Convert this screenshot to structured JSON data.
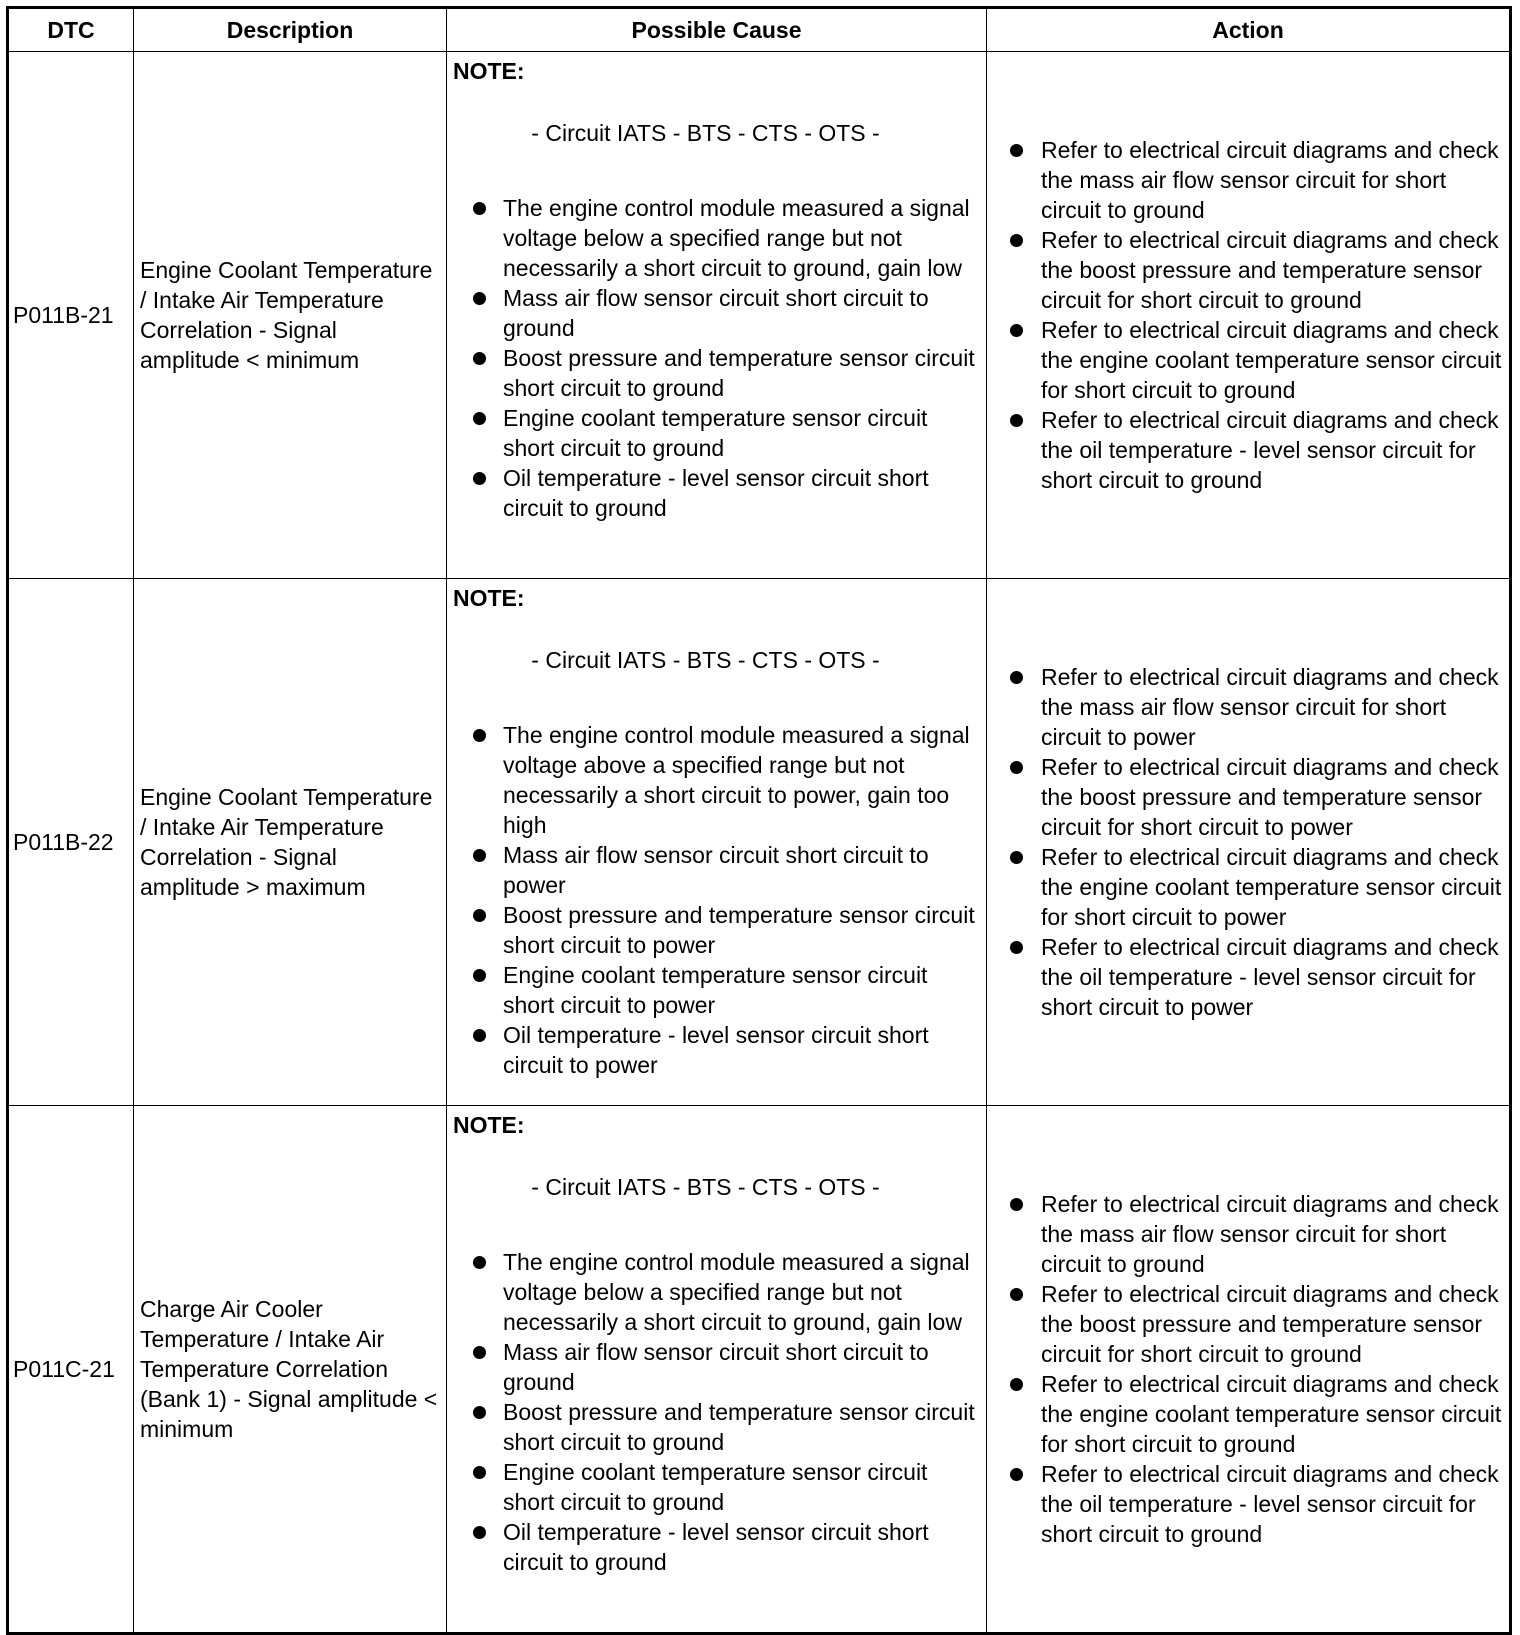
{
  "headers": {
    "dtc": "DTC",
    "description": "Description",
    "cause": "Possible Cause",
    "action": "Action"
  },
  "rows": [
    {
      "dtc": "P011B-21",
      "description": "Engine Coolant Temperature / Intake Air Temperature Correlation - Signal amplitude < minimum",
      "note": "NOTE:",
      "circuit": "- Circuit IATS - BTS - CTS - OTS -",
      "causes": [
        "The engine control module measured a signal voltage below a specified range but not necessarily a short circuit to ground, gain low",
        "Mass air flow sensor circuit short circuit to ground",
        "Boost pressure and temperature sensor circuit short circuit to ground",
        "Engine coolant temperature sensor circuit short circuit to ground",
        "Oil temperature - level sensor circuit short circuit to ground"
      ],
      "actions": [
        "Refer to electrical circuit diagrams and check the mass air flow sensor circuit for short circuit to ground",
        "Refer to electrical circuit diagrams and check the boost pressure and temperature sensor circuit for short circuit to ground",
        "Refer to electrical circuit diagrams and check the engine coolant temperature sensor circuit for short circuit to ground",
        "Refer to electrical circuit diagrams and check the oil temperature - level sensor circuit for short circuit to ground"
      ]
    },
    {
      "dtc": "P011B-22",
      "description": "Engine Coolant Temperature / Intake Air Temperature Correlation - Signal amplitude > maximum",
      "note": "NOTE:",
      "circuit": "- Circuit IATS - BTS - CTS - OTS -",
      "causes": [
        "The engine control module measured a signal voltage above a specified range but not necessarily a short circuit to power, gain too high",
        "Mass air flow sensor circuit short circuit to power",
        "Boost pressure and temperature sensor circuit short circuit to power",
        "Engine coolant temperature sensor circuit short circuit to power",
        "Oil temperature - level sensor circuit short circuit to power"
      ],
      "actions": [
        "Refer to electrical circuit diagrams and check the mass air flow sensor circuit for short circuit to power",
        "Refer to electrical circuit diagrams and check the boost pressure and temperature sensor circuit for short circuit to power",
        "Refer to electrical circuit diagrams and check the engine coolant temperature sensor circuit for short circuit to power",
        "Refer to electrical circuit diagrams and check the oil temperature - level sensor circuit for short circuit to power"
      ]
    },
    {
      "dtc": "P011C-21",
      "description": "Charge Air Cooler Temperature / Intake Air Temperature Correlation (Bank 1) - Signal amplitude < minimum",
      "note": "NOTE:",
      "circuit": "- Circuit IATS - BTS - CTS - OTS -",
      "causes": [
        "The engine control module measured a signal voltage below a specified range but not necessarily a short circuit to ground, gain low",
        "Mass air flow sensor circuit short circuit to ground",
        "Boost pressure and temperature sensor circuit short circuit to ground",
        "Engine coolant temperature sensor circuit short circuit to ground",
        "Oil temperature - level sensor circuit short circuit to ground"
      ],
      "actions": [
        "Refer to electrical circuit diagrams and check the mass air flow sensor circuit for short circuit to ground",
        "Refer to electrical circuit diagrams and check the boost pressure and temperature sensor circuit for short circuit to ground",
        "Refer to electrical circuit diagrams and check the engine coolant temperature sensor circuit for short circuit to ground",
        "Refer to electrical circuit diagrams and check the oil temperature - level sensor circuit for short circuit to ground"
      ]
    }
  ]
}
